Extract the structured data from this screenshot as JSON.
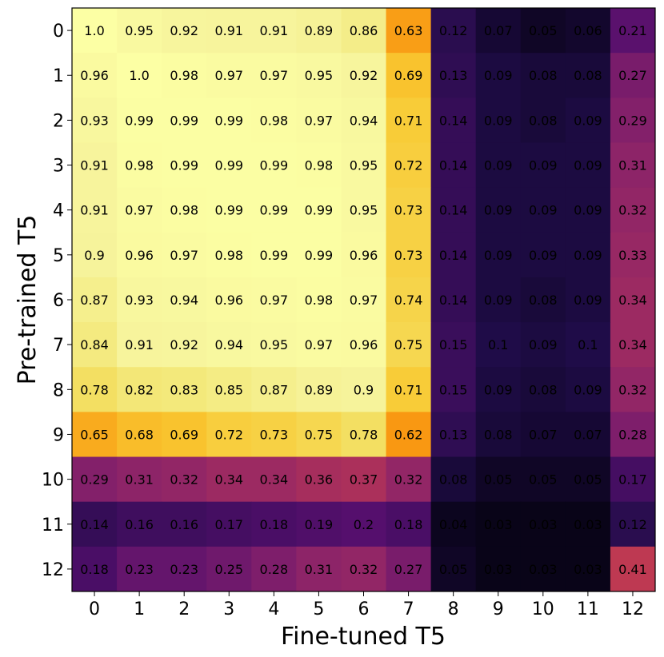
{
  "chart_data": {
    "type": "heatmap",
    "xlabel": "Fine-tuned T5",
    "ylabel": "Pre-trained T5",
    "x_ticks": [
      "0",
      "1",
      "2",
      "3",
      "4",
      "5",
      "6",
      "7",
      "8",
      "9",
      "10",
      "11",
      "12"
    ],
    "y_ticks": [
      "0",
      "1",
      "2",
      "3",
      "4",
      "5",
      "6",
      "7",
      "8",
      "9",
      "10",
      "11",
      "12"
    ],
    "value_range": [
      0.0,
      1.0
    ],
    "colormap": "inferno",
    "values": [
      [
        1.0,
        0.95,
        0.92,
        0.91,
        0.91,
        0.89,
        0.86,
        0.63,
        0.12,
        0.07,
        0.05,
        0.06,
        0.21
      ],
      [
        0.96,
        1.0,
        0.98,
        0.97,
        0.97,
        0.95,
        0.92,
        0.69,
        0.13,
        0.09,
        0.08,
        0.08,
        0.27
      ],
      [
        0.93,
        0.99,
        0.99,
        0.99,
        0.98,
        0.97,
        0.94,
        0.71,
        0.14,
        0.09,
        0.08,
        0.09,
        0.29
      ],
      [
        0.91,
        0.98,
        0.99,
        0.99,
        0.99,
        0.98,
        0.95,
        0.72,
        0.14,
        0.09,
        0.09,
        0.09,
        0.31
      ],
      [
        0.91,
        0.97,
        0.98,
        0.99,
        0.99,
        0.99,
        0.95,
        0.73,
        0.14,
        0.09,
        0.09,
        0.09,
        0.32
      ],
      [
        0.9,
        0.96,
        0.97,
        0.98,
        0.99,
        0.99,
        0.96,
        0.73,
        0.14,
        0.09,
        0.09,
        0.09,
        0.33
      ],
      [
        0.87,
        0.93,
        0.94,
        0.96,
        0.97,
        0.98,
        0.97,
        0.74,
        0.14,
        0.09,
        0.08,
        0.09,
        0.34
      ],
      [
        0.84,
        0.91,
        0.92,
        0.94,
        0.95,
        0.97,
        0.96,
        0.75,
        0.15,
        0.1,
        0.09,
        0.1,
        0.34
      ],
      [
        0.78,
        0.82,
        0.83,
        0.85,
        0.87,
        0.89,
        0.9,
        0.71,
        0.15,
        0.09,
        0.08,
        0.09,
        0.32
      ],
      [
        0.65,
        0.68,
        0.69,
        0.72,
        0.73,
        0.75,
        0.78,
        0.62,
        0.13,
        0.08,
        0.07,
        0.07,
        0.28
      ],
      [
        0.29,
        0.31,
        0.32,
        0.34,
        0.34,
        0.36,
        0.37,
        0.32,
        0.08,
        0.05,
        0.05,
        0.05,
        0.17
      ],
      [
        0.14,
        0.16,
        0.16,
        0.17,
        0.18,
        0.19,
        0.2,
        0.18,
        0.04,
        0.03,
        0.03,
        0.03,
        0.12
      ],
      [
        0.18,
        0.23,
        0.23,
        0.25,
        0.28,
        0.31,
        0.32,
        0.27,
        0.05,
        0.03,
        0.03,
        0.03,
        0.41
      ]
    ],
    "cell_labels": [
      [
        "1.0",
        "0.95",
        "0.92",
        "0.91",
        "0.91",
        "0.89",
        "0.86",
        "0.63",
        "0.12",
        "0.07",
        "0.05",
        "0.06",
        "0.21"
      ],
      [
        "0.96",
        "1.0",
        "0.98",
        "0.97",
        "0.97",
        "0.95",
        "0.92",
        "0.69",
        "0.13",
        "0.09",
        "0.08",
        "0.08",
        "0.27"
      ],
      [
        "0.93",
        "0.99",
        "0.99",
        "0.99",
        "0.98",
        "0.97",
        "0.94",
        "0.71",
        "0.14",
        "0.09",
        "0.08",
        "0.09",
        "0.29"
      ],
      [
        "0.91",
        "0.98",
        "0.99",
        "0.99",
        "0.99",
        "0.98",
        "0.95",
        "0.72",
        "0.14",
        "0.09",
        "0.09",
        "0.09",
        "0.31"
      ],
      [
        "0.91",
        "0.97",
        "0.98",
        "0.99",
        "0.99",
        "0.99",
        "0.95",
        "0.73",
        "0.14",
        "0.09",
        "0.09",
        "0.09",
        "0.32"
      ],
      [
        "0.9",
        "0.96",
        "0.97",
        "0.98",
        "0.99",
        "0.99",
        "0.96",
        "0.73",
        "0.14",
        "0.09",
        "0.09",
        "0.09",
        "0.33"
      ],
      [
        "0.87",
        "0.93",
        "0.94",
        "0.96",
        "0.97",
        "0.98",
        "0.97",
        "0.74",
        "0.14",
        "0.09",
        "0.08",
        "0.09",
        "0.34"
      ],
      [
        "0.84",
        "0.91",
        "0.92",
        "0.94",
        "0.95",
        "0.97",
        "0.96",
        "0.75",
        "0.15",
        "0.1",
        "0.09",
        "0.1",
        "0.34"
      ],
      [
        "0.78",
        "0.82",
        "0.83",
        "0.85",
        "0.87",
        "0.89",
        "0.9",
        "0.71",
        "0.15",
        "0.09",
        "0.08",
        "0.09",
        "0.32"
      ],
      [
        "0.65",
        "0.68",
        "0.69",
        "0.72",
        "0.73",
        "0.75",
        "0.78",
        "0.62",
        "0.13",
        "0.08",
        "0.07",
        "0.07",
        "0.28"
      ],
      [
        "0.29",
        "0.31",
        "0.32",
        "0.34",
        "0.34",
        "0.36",
        "0.37",
        "0.32",
        "0.08",
        "0.05",
        "0.05",
        "0.05",
        "0.17"
      ],
      [
        "0.14",
        "0.16",
        "0.16",
        "0.17",
        "0.18",
        "0.19",
        "0.2",
        "0.18",
        "0.04",
        "0.03",
        "0.03",
        "0.03",
        "0.12"
      ],
      [
        "0.18",
        "0.23",
        "0.23",
        "0.25",
        "0.28",
        "0.31",
        "0.32",
        "0.27",
        "0.05",
        "0.03",
        "0.03",
        "0.03",
        "0.41"
      ]
    ]
  }
}
